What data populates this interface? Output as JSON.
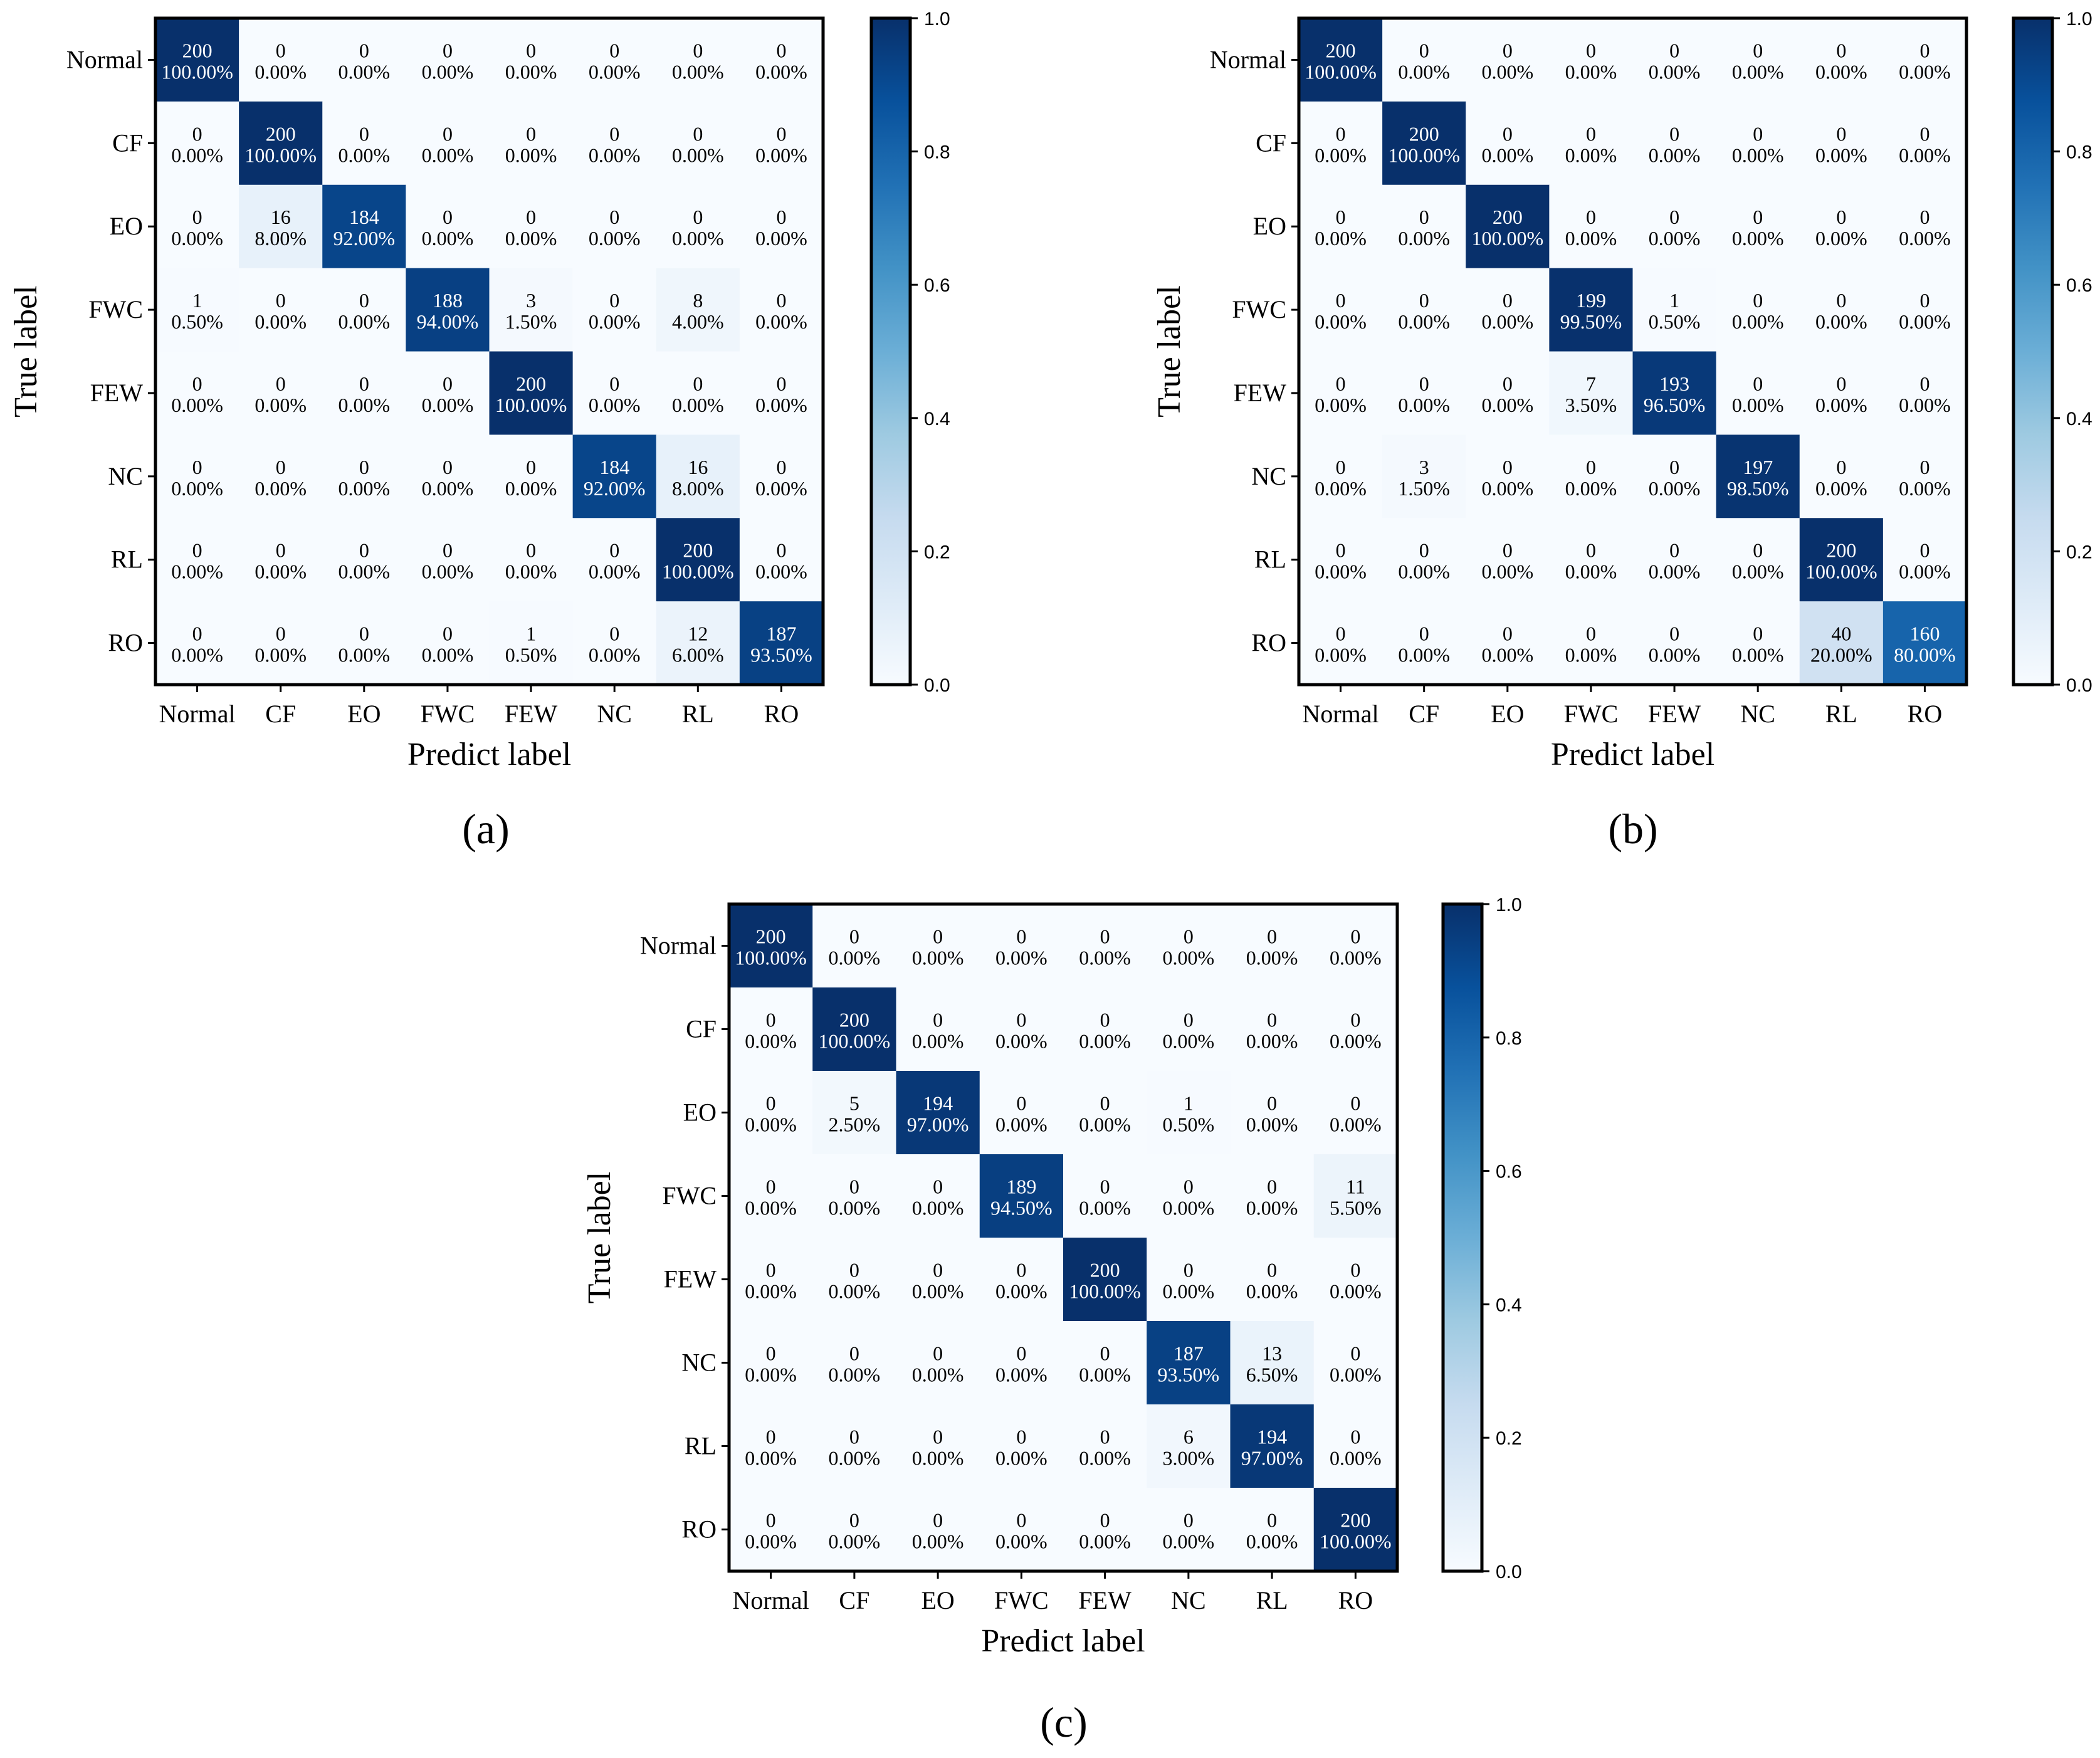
{
  "chart_data": [
    {
      "type": "heatmap",
      "panel_label": "(a)",
      "classes": [
        "Normal",
        "CF",
        "EO",
        "FWC",
        "FEW",
        "NC",
        "RL",
        "RO"
      ],
      "xlabel": "Predict label",
      "ylabel": "True label",
      "colorbar": {
        "range": [
          0,
          1
        ],
        "ticks": [
          "0.0",
          "0.2",
          "0.4",
          "0.6",
          "0.8",
          "1.0"
        ],
        "colormap": "Blues"
      },
      "counts": [
        [
          200,
          0,
          0,
          0,
          0,
          0,
          0,
          0
        ],
        [
          0,
          200,
          0,
          0,
          0,
          0,
          0,
          0
        ],
        [
          0,
          16,
          184,
          0,
          0,
          0,
          0,
          0
        ],
        [
          1,
          0,
          0,
          188,
          3,
          0,
          8,
          0
        ],
        [
          0,
          0,
          0,
          0,
          200,
          0,
          0,
          0
        ],
        [
          0,
          0,
          0,
          0,
          0,
          184,
          16,
          0
        ],
        [
          0,
          0,
          0,
          0,
          0,
          0,
          200,
          0
        ],
        [
          0,
          0,
          0,
          0,
          1,
          0,
          12,
          187
        ]
      ],
      "percents": [
        [
          "100.00%",
          "0.00%",
          "0.00%",
          "0.00%",
          "0.00%",
          "0.00%",
          "0.00%",
          "0.00%"
        ],
        [
          "0.00%",
          "100.00%",
          "0.00%",
          "0.00%",
          "0.00%",
          "0.00%",
          "0.00%",
          "0.00%"
        ],
        [
          "0.00%",
          "8.00%",
          "92.00%",
          "0.00%",
          "0.00%",
          "0.00%",
          "0.00%",
          "0.00%"
        ],
        [
          "0.50%",
          "0.00%",
          "0.00%",
          "94.00%",
          "1.50%",
          "0.00%",
          "4.00%",
          "0.00%"
        ],
        [
          "0.00%",
          "0.00%",
          "0.00%",
          "0.00%",
          "100.00%",
          "0.00%",
          "0.00%",
          "0.00%"
        ],
        [
          "0.00%",
          "0.00%",
          "0.00%",
          "0.00%",
          "0.00%",
          "92.00%",
          "8.00%",
          "0.00%"
        ],
        [
          "0.00%",
          "0.00%",
          "0.00%",
          "0.00%",
          "0.00%",
          "0.00%",
          "100.00%",
          "0.00%"
        ],
        [
          "0.00%",
          "0.00%",
          "0.00%",
          "0.00%",
          "0.50%",
          "0.00%",
          "6.00%",
          "93.50%"
        ]
      ]
    },
    {
      "type": "heatmap",
      "panel_label": "(b)",
      "classes": [
        "Normal",
        "CF",
        "EO",
        "FWC",
        "FEW",
        "NC",
        "RL",
        "RO"
      ],
      "xlabel": "Predict label",
      "ylabel": "True label",
      "colorbar": {
        "range": [
          0,
          1
        ],
        "ticks": [
          "0.0",
          "0.2",
          "0.4",
          "0.6",
          "0.8",
          "1.0"
        ],
        "colormap": "Blues"
      },
      "counts": [
        [
          200,
          0,
          0,
          0,
          0,
          0,
          0,
          0
        ],
        [
          0,
          200,
          0,
          0,
          0,
          0,
          0,
          0
        ],
        [
          0,
          0,
          200,
          0,
          0,
          0,
          0,
          0
        ],
        [
          0,
          0,
          0,
          199,
          1,
          0,
          0,
          0
        ],
        [
          0,
          0,
          0,
          7,
          193,
          0,
          0,
          0
        ],
        [
          0,
          3,
          0,
          0,
          0,
          197,
          0,
          0
        ],
        [
          0,
          0,
          0,
          0,
          0,
          0,
          200,
          0
        ],
        [
          0,
          0,
          0,
          0,
          0,
          0,
          40,
          160
        ]
      ],
      "percents": [
        [
          "100.00%",
          "0.00%",
          "0.00%",
          "0.00%",
          "0.00%",
          "0.00%",
          "0.00%",
          "0.00%"
        ],
        [
          "0.00%",
          "100.00%",
          "0.00%",
          "0.00%",
          "0.00%",
          "0.00%",
          "0.00%",
          "0.00%"
        ],
        [
          "0.00%",
          "0.00%",
          "100.00%",
          "0.00%",
          "0.00%",
          "0.00%",
          "0.00%",
          "0.00%"
        ],
        [
          "0.00%",
          "0.00%",
          "0.00%",
          "99.50%",
          "0.50%",
          "0.00%",
          "0.00%",
          "0.00%"
        ],
        [
          "0.00%",
          "0.00%",
          "0.00%",
          "3.50%",
          "96.50%",
          "0.00%",
          "0.00%",
          "0.00%"
        ],
        [
          "0.00%",
          "1.50%",
          "0.00%",
          "0.00%",
          "0.00%",
          "98.50%",
          "0.00%",
          "0.00%"
        ],
        [
          "0.00%",
          "0.00%",
          "0.00%",
          "0.00%",
          "0.00%",
          "0.00%",
          "100.00%",
          "0.00%"
        ],
        [
          "0.00%",
          "0.00%",
          "0.00%",
          "0.00%",
          "0.00%",
          "0.00%",
          "20.00%",
          "80.00%"
        ]
      ]
    },
    {
      "type": "heatmap",
      "panel_label": "(c)",
      "classes": [
        "Normal",
        "CF",
        "EO",
        "FWC",
        "FEW",
        "NC",
        "RL",
        "RO"
      ],
      "xlabel": "Predict label",
      "ylabel": "True label",
      "colorbar": {
        "range": [
          0,
          1
        ],
        "ticks": [
          "0.0",
          "0.2",
          "0.4",
          "0.6",
          "0.8",
          "1.0"
        ],
        "colormap": "Blues"
      },
      "counts": [
        [
          200,
          0,
          0,
          0,
          0,
          0,
          0,
          0
        ],
        [
          0,
          200,
          0,
          0,
          0,
          0,
          0,
          0
        ],
        [
          0,
          5,
          194,
          0,
          0,
          1,
          0,
          0
        ],
        [
          0,
          0,
          0,
          189,
          0,
          0,
          0,
          11
        ],
        [
          0,
          0,
          0,
          0,
          200,
          0,
          0,
          0
        ],
        [
          0,
          0,
          0,
          0,
          0,
          187,
          13,
          0
        ],
        [
          0,
          0,
          0,
          0,
          0,
          6,
          194,
          0
        ],
        [
          0,
          0,
          0,
          0,
          0,
          0,
          0,
          200
        ]
      ],
      "percents": [
        [
          "100.00%",
          "0.00%",
          "0.00%",
          "0.00%",
          "0.00%",
          "0.00%",
          "0.00%",
          "0.00%"
        ],
        [
          "0.00%",
          "100.00%",
          "0.00%",
          "0.00%",
          "0.00%",
          "0.00%",
          "0.00%",
          "0.00%"
        ],
        [
          "0.00%",
          "2.50%",
          "97.00%",
          "0.00%",
          "0.00%",
          "0.50%",
          "0.00%",
          "0.00%"
        ],
        [
          "0.00%",
          "0.00%",
          "0.00%",
          "94.50%",
          "0.00%",
          "0.00%",
          "0.00%",
          "5.50%"
        ],
        [
          "0.00%",
          "0.00%",
          "0.00%",
          "0.00%",
          "100.00%",
          "0.00%",
          "0.00%",
          "0.00%"
        ],
        [
          "0.00%",
          "0.00%",
          "0.00%",
          "0.00%",
          "0.00%",
          "93.50%",
          "6.50%",
          "0.00%"
        ],
        [
          "0.00%",
          "0.00%",
          "0.00%",
          "0.00%",
          "0.00%",
          "3.00%",
          "97.00%",
          "0.00%"
        ],
        [
          "0.00%",
          "0.00%",
          "0.00%",
          "0.00%",
          "0.00%",
          "0.00%",
          "0.00%",
          "100.00%"
        ]
      ]
    }
  ]
}
